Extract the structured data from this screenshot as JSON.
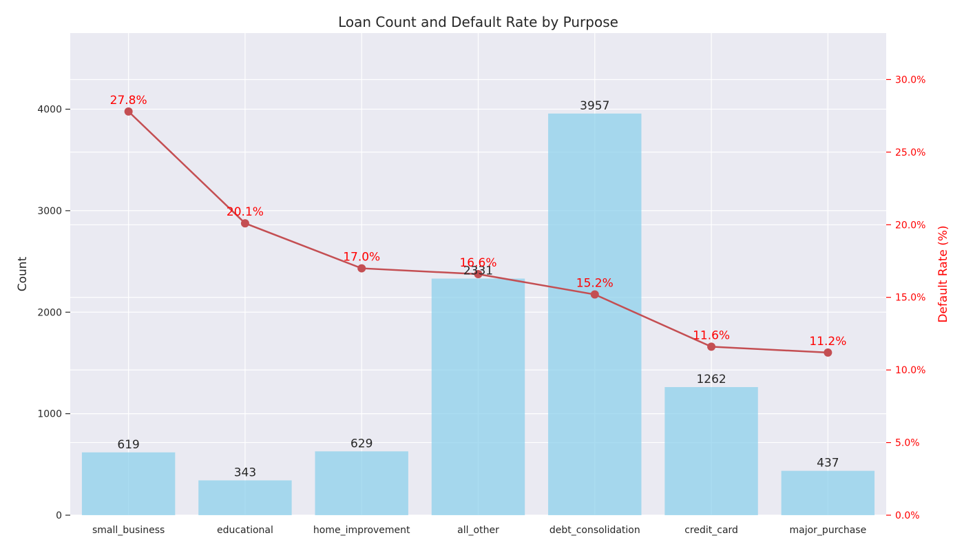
{
  "chart_data": {
    "type": "bar",
    "title": "Loan Count and Default Rate by Purpose",
    "categories": [
      "small_business",
      "educational",
      "home_improvement",
      "all_other",
      "debt_consolidation",
      "credit_card",
      "major_purchase"
    ],
    "series": [
      {
        "type": "bar",
        "axis": "left",
        "values": [
          619,
          343,
          629,
          2331,
          3957,
          1262,
          437
        ],
        "labels": [
          "619",
          "343",
          "629",
          "2331",
          "3957",
          "1262",
          "437"
        ],
        "color": "#87ceeb"
      },
      {
        "type": "line",
        "axis": "right",
        "values": [
          27.8,
          20.1,
          17.0,
          16.6,
          15.2,
          11.6,
          11.2
        ],
        "labels": [
          "27.8%",
          "20.1%",
          "17.0%",
          "16.6%",
          "15.2%",
          "11.6%",
          "11.2%"
        ],
        "color": "#c44e52"
      }
    ],
    "ylabel": "Count",
    "ylabel_right": "Default Rate (%)",
    "ylim": [
      0,
      4750
    ],
    "ylim_right": [
      0,
      33.2
    ],
    "yticks": [
      0,
      1000,
      2000,
      3000,
      4000
    ],
    "ytick_labels": [
      "0",
      "1000",
      "2000",
      "3000",
      "4000"
    ],
    "yticks_right": [
      0,
      5,
      10,
      15,
      20,
      25,
      30
    ],
    "ytick_labels_right": [
      "0.0%",
      "5.0%",
      "10.0%",
      "15.0%",
      "20.0%",
      "25.0%",
      "30.0%"
    ],
    "grid": true,
    "colors": {
      "background": "#eaeaf2",
      "grid": "#ffffff",
      "bar": "#87ceeb",
      "line": "#c44e52",
      "right_axis": "#ff0000",
      "text": "#262626"
    }
  }
}
